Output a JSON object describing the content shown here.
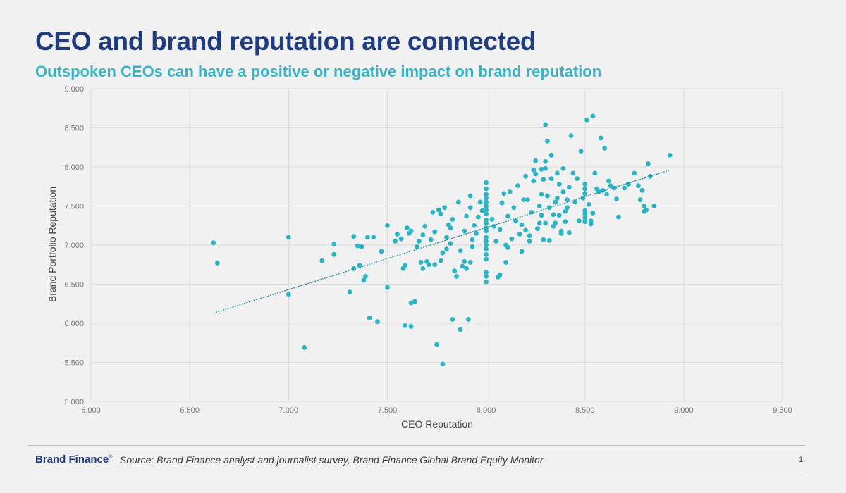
{
  "slide": {
    "title": "CEO and brand reputation are connected",
    "subtitle": "Outspoken CEOs can have a positive or negative impact on brand reputation"
  },
  "footer": {
    "brand": "Brand Finance",
    "registered_mark": "®",
    "source": "Source: Brand Finance analyst and journalist survey, Brand Finance Global Brand Equity Monitor",
    "page_number": "1."
  },
  "colors": {
    "title": "#1f3c80",
    "subtitle": "#38b4c5",
    "point": "#2bb4c4",
    "trendline": "#1d8a9a",
    "grid": "#dcdcdc"
  },
  "chart_data": {
    "type": "scatter",
    "xlabel": "CEO Reputation",
    "ylabel": "Brand Portfolio Reputation",
    "xlim": [
      6.0,
      9.5
    ],
    "ylim": [
      5.0,
      9.0
    ],
    "xticks": [
      "6.000",
      "6.500",
      "7.000",
      "7.500",
      "8.000",
      "8.500",
      "9.000",
      "9.500"
    ],
    "yticks": [
      "5.000",
      "5.500",
      "6.000",
      "6.500",
      "7.000",
      "7.500",
      "8.000",
      "8.500",
      "9.000"
    ],
    "grid": true,
    "trendline": {
      "style": "dotted",
      "start": [
        6.62,
        6.13
      ],
      "end": [
        8.93,
        7.96
      ]
    },
    "points": [
      [
        6.62,
        7.03
      ],
      [
        6.64,
        6.77
      ],
      [
        7.0,
        7.1
      ],
      [
        7.0,
        6.37
      ],
      [
        7.08,
        5.69
      ],
      [
        7.17,
        6.8
      ],
      [
        7.23,
        6.88
      ],
      [
        7.23,
        7.01
      ],
      [
        7.31,
        6.4
      ],
      [
        7.33,
        7.11
      ],
      [
        7.33,
        6.7
      ],
      [
        7.35,
        6.99
      ],
      [
        7.36,
        6.74
      ],
      [
        7.37,
        6.98
      ],
      [
        7.38,
        6.55
      ],
      [
        7.39,
        6.6
      ],
      [
        7.4,
        7.1
      ],
      [
        7.41,
        6.07
      ],
      [
        7.43,
        7.1
      ],
      [
        7.45,
        6.02
      ],
      [
        7.47,
        6.92
      ],
      [
        7.5,
        6.46
      ],
      [
        7.5,
        7.25
      ],
      [
        7.54,
        7.05
      ],
      [
        7.55,
        7.14
      ],
      [
        7.57,
        7.08
      ],
      [
        7.58,
        6.7
      ],
      [
        7.59,
        6.74
      ],
      [
        7.59,
        5.97
      ],
      [
        7.6,
        7.22
      ],
      [
        7.61,
        7.15
      ],
      [
        7.62,
        7.18
      ],
      [
        7.62,
        5.96
      ],
      [
        7.62,
        6.26
      ],
      [
        7.64,
        6.28
      ],
      [
        7.65,
        6.98
      ],
      [
        7.66,
        7.05
      ],
      [
        7.67,
        6.78
      ],
      [
        7.68,
        6.7
      ],
      [
        7.68,
        7.13
      ],
      [
        7.69,
        7.24
      ],
      [
        7.7,
        6.79
      ],
      [
        7.71,
        6.75
      ],
      [
        7.72,
        7.07
      ],
      [
        7.73,
        7.42
      ],
      [
        7.74,
        7.17
      ],
      [
        7.74,
        6.75
      ],
      [
        7.75,
        5.73
      ],
      [
        7.76,
        7.45
      ],
      [
        7.77,
        6.8
      ],
      [
        7.77,
        7.4
      ],
      [
        7.78,
        5.48
      ],
      [
        7.78,
        6.9
      ],
      [
        7.79,
        7.48
      ],
      [
        7.8,
        7.1
      ],
      [
        7.8,
        6.95
      ],
      [
        7.81,
        7.26
      ],
      [
        7.82,
        7.02
      ],
      [
        7.82,
        7.22
      ],
      [
        7.83,
        7.33
      ],
      [
        7.83,
        6.05
      ],
      [
        7.84,
        6.67
      ],
      [
        7.85,
        6.6
      ],
      [
        7.86,
        7.55
      ],
      [
        7.87,
        6.93
      ],
      [
        7.87,
        5.92
      ],
      [
        7.88,
        6.73
      ],
      [
        7.89,
        7.18
      ],
      [
        7.89,
        6.79
      ],
      [
        7.9,
        7.37
      ],
      [
        7.9,
        6.7
      ],
      [
        7.91,
        6.05
      ],
      [
        7.92,
        7.63
      ],
      [
        7.92,
        7.48
      ],
      [
        7.92,
        6.78
      ],
      [
        7.93,
        7.07
      ],
      [
        7.93,
        6.98
      ],
      [
        7.94,
        7.25
      ],
      [
        7.95,
        7.15
      ],
      [
        7.96,
        7.36
      ],
      [
        7.97,
        7.55
      ],
      [
        7.98,
        7.44
      ],
      [
        8.0,
        7.8
      ],
      [
        8.0,
        7.72
      ],
      [
        8.0,
        7.65
      ],
      [
        8.0,
        7.6
      ],
      [
        8.0,
        7.55
      ],
      [
        8.0,
        7.5
      ],
      [
        8.0,
        7.45
      ],
      [
        8.0,
        7.4
      ],
      [
        8.0,
        7.32
      ],
      [
        8.0,
        7.28
      ],
      [
        8.0,
        7.22
      ],
      [
        8.0,
        7.18
      ],
      [
        8.0,
        7.1
      ],
      [
        8.0,
        7.05
      ],
      [
        8.0,
        7.0
      ],
      [
        8.0,
        6.95
      ],
      [
        8.0,
        6.88
      ],
      [
        8.0,
        6.82
      ],
      [
        8.0,
        6.65
      ],
      [
        8.0,
        6.6
      ],
      [
        8.0,
        6.53
      ],
      [
        8.03,
        7.33
      ],
      [
        8.04,
        7.24
      ],
      [
        8.05,
        7.05
      ],
      [
        8.06,
        6.59
      ],
      [
        8.07,
        6.62
      ],
      [
        8.07,
        7.2
      ],
      [
        8.08,
        7.54
      ],
      [
        8.09,
        7.66
      ],
      [
        8.1,
        7.0
      ],
      [
        8.1,
        6.78
      ],
      [
        8.11,
        7.37
      ],
      [
        8.11,
        6.97
      ],
      [
        8.12,
        7.68
      ],
      [
        8.13,
        7.08
      ],
      [
        8.14,
        7.48
      ],
      [
        8.15,
        7.31
      ],
      [
        8.16,
        7.76
      ],
      [
        8.17,
        7.14
      ],
      [
        8.18,
        7.26
      ],
      [
        8.18,
        6.92
      ],
      [
        8.19,
        7.58
      ],
      [
        8.2,
        7.19
      ],
      [
        8.2,
        7.88
      ],
      [
        8.21,
        7.58
      ],
      [
        8.22,
        7.12
      ],
      [
        8.22,
        7.05
      ],
      [
        8.23,
        7.42
      ],
      [
        8.24,
        7.82
      ],
      [
        8.24,
        7.96
      ],
      [
        8.25,
        7.91
      ],
      [
        8.25,
        8.08
      ],
      [
        8.26,
        7.21
      ],
      [
        8.27,
        7.5
      ],
      [
        8.27,
        7.28
      ],
      [
        8.28,
        7.97
      ],
      [
        8.28,
        7.65
      ],
      [
        8.28,
        7.38
      ],
      [
        8.29,
        7.07
      ],
      [
        8.29,
        7.84
      ],
      [
        8.3,
        7.98
      ],
      [
        8.3,
        7.28
      ],
      [
        8.3,
        8.54
      ],
      [
        8.3,
        8.07
      ],
      [
        8.31,
        8.33
      ],
      [
        8.31,
        7.63
      ],
      [
        8.32,
        7.06
      ],
      [
        8.32,
        7.48
      ],
      [
        8.33,
        8.15
      ],
      [
        8.33,
        7.85
      ],
      [
        8.34,
        7.39
      ],
      [
        8.34,
        7.24
      ],
      [
        8.35,
        7.55
      ],
      [
        8.35,
        7.28
      ],
      [
        8.36,
        7.92
      ],
      [
        8.36,
        7.6
      ],
      [
        8.37,
        7.78
      ],
      [
        8.37,
        7.38
      ],
      [
        8.38,
        7.15
      ],
      [
        8.38,
        7.18
      ],
      [
        8.39,
        7.98
      ],
      [
        8.39,
        7.68
      ],
      [
        8.4,
        7.43
      ],
      [
        8.4,
        7.3
      ],
      [
        8.41,
        7.48
      ],
      [
        8.41,
        7.58
      ],
      [
        8.42,
        7.16
      ],
      [
        8.42,
        7.74
      ],
      [
        8.43,
        8.4
      ],
      [
        8.44,
        7.92
      ],
      [
        8.45,
        7.55
      ],
      [
        8.46,
        7.85
      ],
      [
        8.47,
        7.31
      ],
      [
        8.48,
        8.2
      ],
      [
        8.49,
        7.6
      ],
      [
        8.5,
        7.78
      ],
      [
        8.5,
        7.72
      ],
      [
        8.5,
        7.66
      ],
      [
        8.5,
        7.44
      ],
      [
        8.5,
        7.4
      ],
      [
        8.5,
        7.35
      ],
      [
        8.5,
        7.3
      ],
      [
        8.51,
        8.6
      ],
      [
        8.52,
        7.52
      ],
      [
        8.53,
        7.31
      ],
      [
        8.53,
        7.27
      ],
      [
        8.54,
        8.65
      ],
      [
        8.54,
        7.41
      ],
      [
        8.55,
        7.92
      ],
      [
        8.56,
        7.72
      ],
      [
        8.57,
        7.68
      ],
      [
        8.58,
        8.37
      ],
      [
        8.59,
        7.7
      ],
      [
        8.6,
        8.24
      ],
      [
        8.61,
        7.65
      ],
      [
        8.62,
        7.82
      ],
      [
        8.63,
        7.76
      ],
      [
        8.65,
        7.73
      ],
      [
        8.66,
        7.59
      ],
      [
        8.67,
        7.36
      ],
      [
        8.7,
        7.73
      ],
      [
        8.72,
        7.78
      ],
      [
        8.75,
        7.92
      ],
      [
        8.77,
        7.76
      ],
      [
        8.78,
        7.58
      ],
      [
        8.79,
        7.7
      ],
      [
        8.8,
        7.5
      ],
      [
        8.8,
        7.43
      ],
      [
        8.81,
        7.45
      ],
      [
        8.82,
        8.04
      ],
      [
        8.83,
        7.88
      ],
      [
        8.85,
        7.5
      ],
      [
        8.93,
        8.15
      ]
    ]
  }
}
